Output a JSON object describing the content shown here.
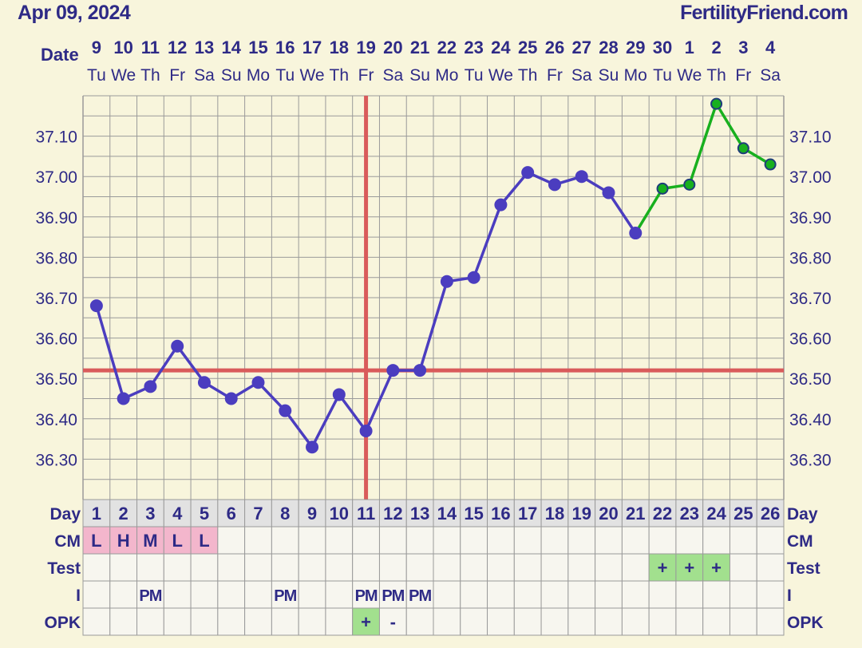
{
  "header": {
    "date": "Apr 09, 2024",
    "site": "FertilityFriend.com"
  },
  "colors": {
    "background": "#f8f5dc",
    "text": "#2e2a86",
    "grid": "#9a9a9a",
    "preovulation_line": "#4b3dbf",
    "postovulation_line": "#18b01e",
    "coverline": "#d95b5b",
    "cm_fill": "#f3b6cc",
    "positive_fill": "#a2e08e"
  },
  "chart_data": {
    "type": "line",
    "ylim": [
      36.2,
      37.2
    ],
    "yticks": [
      "37.10",
      "37.00",
      "36.90",
      "36.80",
      "36.70",
      "36.60",
      "36.50",
      "36.40",
      "36.30"
    ],
    "date_row_label": "Date",
    "dates": [
      "9",
      "10",
      "11",
      "12",
      "13",
      "14",
      "15",
      "16",
      "17",
      "18",
      "19",
      "20",
      "21",
      "22",
      "23",
      "24",
      "25",
      "26",
      "27",
      "28",
      "29",
      "30",
      "1",
      "2",
      "3",
      "4"
    ],
    "weekdays": [
      "Tu",
      "We",
      "Th",
      "Fr",
      "Sa",
      "Su",
      "Mo",
      "Tu",
      "We",
      "Th",
      "Fr",
      "Sa",
      "Su",
      "Mo",
      "Tu",
      "We",
      "Th",
      "Fr",
      "Sa",
      "Su",
      "Mo",
      "Tu",
      "We",
      "Th",
      "Fr",
      "Sa"
    ],
    "series": [
      {
        "values": [
          36.68,
          36.45,
          36.48,
          36.58,
          36.49,
          36.45,
          36.49,
          36.42,
          36.33,
          36.46,
          36.37,
          36.52,
          36.52,
          36.74,
          36.75,
          36.93,
          37.01,
          36.98,
          37.0,
          36.96,
          36.86,
          36.97,
          36.98,
          37.18,
          37.07,
          37.03
        ]
      }
    ],
    "ovulation_day": 11,
    "coverline": 36.52,
    "post_ovulation_start_day": 21,
    "rows": [
      {
        "label": "Day",
        "values": [
          "1",
          "2",
          "3",
          "4",
          "5",
          "6",
          "7",
          "8",
          "9",
          "10",
          "11",
          "12",
          "13",
          "14",
          "15",
          "16",
          "17",
          "18",
          "19",
          "20",
          "21",
          "22",
          "23",
          "24",
          "25",
          "26"
        ]
      },
      {
        "label": "CM",
        "values": [
          "L",
          "H",
          "M",
          "L",
          "L",
          "",
          "",
          "",
          "",
          "",
          "",
          "",
          "",
          "",
          "",
          "",
          "",
          "",
          "",
          "",
          "",
          "",
          "",
          "",
          "",
          ""
        ]
      },
      {
        "label": "Test",
        "values": [
          "",
          "",
          "",
          "",
          "",
          "",
          "",
          "",
          "",
          "",
          "",
          "",
          "",
          "",
          "",
          "",
          "",
          "",
          "",
          "",
          "",
          "+",
          "+",
          "+",
          "",
          ""
        ]
      },
      {
        "label": "I",
        "values": [
          "",
          "",
          "PM",
          "",
          "",
          "",
          "",
          "PM",
          "",
          "",
          "PM",
          "PM",
          "PM",
          "",
          "",
          "",
          "",
          "",
          "",
          "",
          "",
          "",
          "",
          "",
          "",
          ""
        ]
      },
      {
        "label": "OPK",
        "values": [
          "",
          "",
          "",
          "",
          "",
          "",
          "",
          "",
          "",
          "",
          "+",
          "-",
          "",
          "",
          "",
          "",
          "",
          "",
          "",
          "",
          "",
          "",
          "",
          "",
          "",
          ""
        ]
      }
    ]
  }
}
